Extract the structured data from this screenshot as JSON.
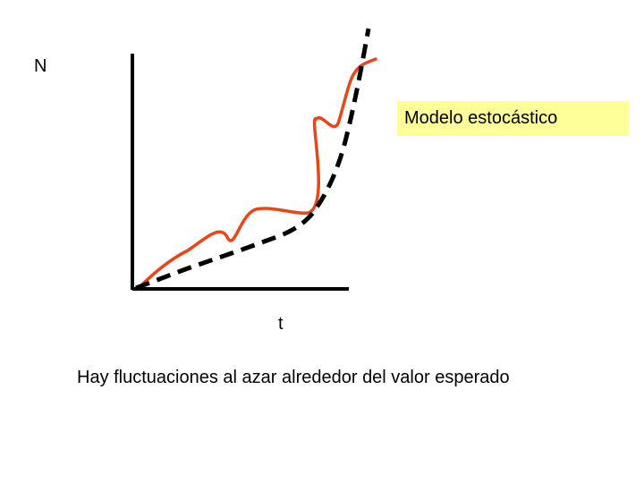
{
  "axis": {
    "y_label": "N",
    "x_label": "t"
  },
  "legend": {
    "label": "Modelo estocástico",
    "background": "#ffff99"
  },
  "caption": "Hay fluctuaciones al azar alrededor del valor esperado",
  "curves": {
    "stochastic": {
      "color": "#e8461a",
      "style": "solid"
    },
    "expected": {
      "color": "#000000",
      "style": "dashed"
    }
  },
  "axes_color": "#000000"
}
